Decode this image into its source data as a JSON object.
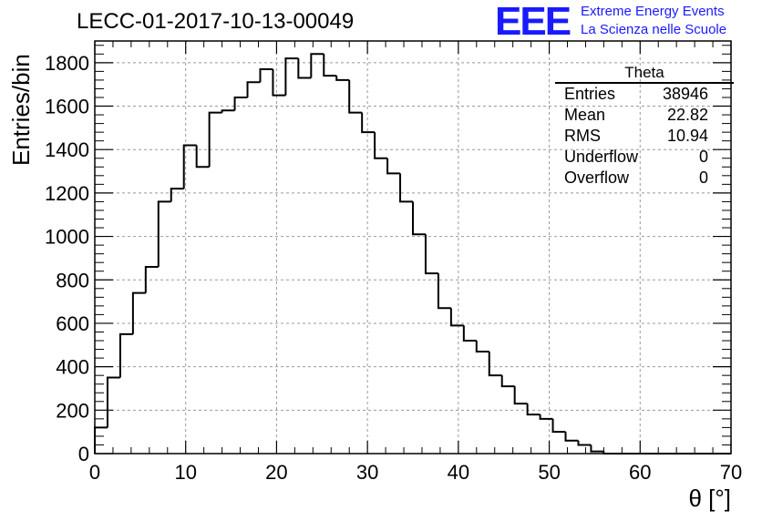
{
  "header": {
    "title": "LECC-01-2017-10-13-00049",
    "logo_text": "EEE",
    "logo_line1": "Extreme Energy Events",
    "logo_line2": "La Scienza nelle Scuole"
  },
  "stats": {
    "title": "Theta",
    "rows": [
      {
        "label": "Entries",
        "value": "38946"
      },
      {
        "label": "Mean",
        "value": "22.82"
      },
      {
        "label": "RMS",
        "value": "10.94"
      },
      {
        "label": "Underflow",
        "value": "0"
      },
      {
        "label": "Overflow",
        "value": "0"
      }
    ]
  },
  "chart_data": {
    "type": "histogram",
    "title": "LECC-01-2017-10-13-00049",
    "xlabel": "θ [°]",
    "ylabel": "Entries/bin",
    "xlim": [
      0,
      70
    ],
    "ylim": [
      0,
      1900
    ],
    "x_ticks": [
      0,
      10,
      20,
      30,
      40,
      50,
      60,
      70
    ],
    "y_ticks": [
      0,
      200,
      400,
      600,
      800,
      1000,
      1200,
      1400,
      1600,
      1800
    ],
    "grid": true,
    "bin_width": 1.4,
    "bin_edges_start": 0,
    "values": [
      120,
      350,
      550,
      740,
      860,
      1160,
      1220,
      1420,
      1320,
      1570,
      1580,
      1640,
      1710,
      1770,
      1650,
      1820,
      1730,
      1840,
      1740,
      1720,
      1570,
      1480,
      1360,
      1290,
      1160,
      1010,
      830,
      670,
      590,
      520,
      470,
      360,
      310,
      230,
      180,
      160,
      100,
      60,
      40,
      10,
      0,
      0,
      0,
      0,
      0,
      0,
      0,
      0,
      0,
      0
    ]
  }
}
